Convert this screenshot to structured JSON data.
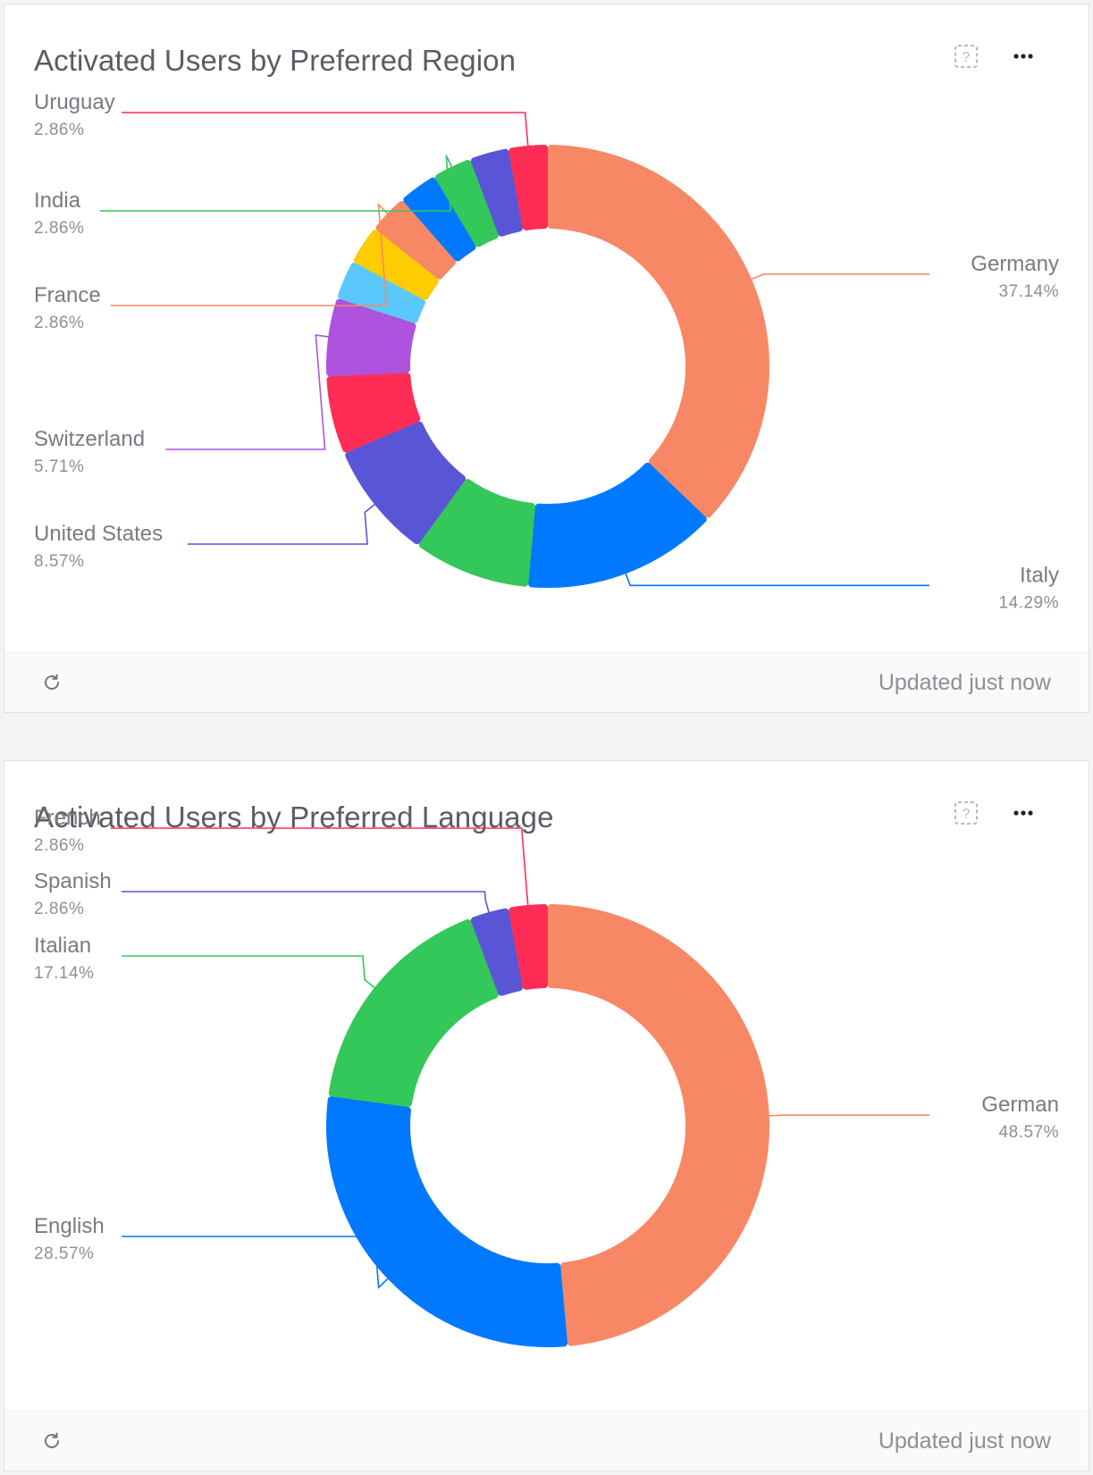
{
  "cards": [
    {
      "title": "Activated Users by Preferred Region",
      "footer_text": "Updated just now"
    },
    {
      "title": "Activated Users by Preferred Language",
      "footer_text": "Updated just now"
    }
  ],
  "chart_data": [
    {
      "type": "donut",
      "title": "Activated Users by Preferred Region",
      "slices": [
        {
          "label": "Germany",
          "value": 37.14,
          "display": "37.14%",
          "color": "#f88865",
          "labeled": true
        },
        {
          "label": "Italy",
          "value": 14.29,
          "display": "14.29%",
          "color": "#0079ff",
          "labeled": true
        },
        {
          "label": "",
          "value": 8.57,
          "display": "",
          "color": "#34c759",
          "labeled": false
        },
        {
          "label": "United States",
          "value": 8.57,
          "display": "8.57%",
          "color": "#5856d6",
          "labeled": true
        },
        {
          "label": "",
          "value": 5.71,
          "display": "",
          "color": "#ff2d55",
          "labeled": false
        },
        {
          "label": "Switzerland",
          "value": 5.71,
          "display": "5.71%",
          "color": "#af52de",
          "labeled": true
        },
        {
          "label": "",
          "value": 2.86,
          "display": "",
          "color": "#5ac8fa",
          "labeled": false
        },
        {
          "label": "",
          "value": 2.86,
          "display": "",
          "color": "#ffcc00",
          "labeled": false
        },
        {
          "label": "France",
          "value": 2.86,
          "display": "2.86%",
          "color": "#f88865",
          "labeled": true
        },
        {
          "label": "",
          "value": 2.86,
          "display": "",
          "color": "#0079ff",
          "labeled": false
        },
        {
          "label": "India",
          "value": 2.86,
          "display": "2.86%",
          "color": "#34c759",
          "labeled": true
        },
        {
          "label": "",
          "value": 2.86,
          "display": "",
          "color": "#5856d6",
          "labeled": false
        },
        {
          "label": "Uruguay",
          "value": 2.86,
          "display": "2.86%",
          "color": "#ff2d55",
          "labeled": true
        }
      ]
    },
    {
      "type": "donut",
      "title": "Activated Users by Preferred Language",
      "slices": [
        {
          "label": "German",
          "value": 48.57,
          "display": "48.57%",
          "color": "#f88865",
          "labeled": true
        },
        {
          "label": "English",
          "value": 28.57,
          "display": "28.57%",
          "color": "#0079ff",
          "labeled": true
        },
        {
          "label": "Italian",
          "value": 17.14,
          "display": "17.14%",
          "color": "#34c759",
          "labeled": true
        },
        {
          "label": "Spanish",
          "value": 2.86,
          "display": "2.86%",
          "color": "#5856d6",
          "labeled": true
        },
        {
          "label": "French",
          "value": 2.86,
          "display": "2.86%",
          "color": "#ff2d55",
          "labeled": true
        }
      ]
    }
  ]
}
